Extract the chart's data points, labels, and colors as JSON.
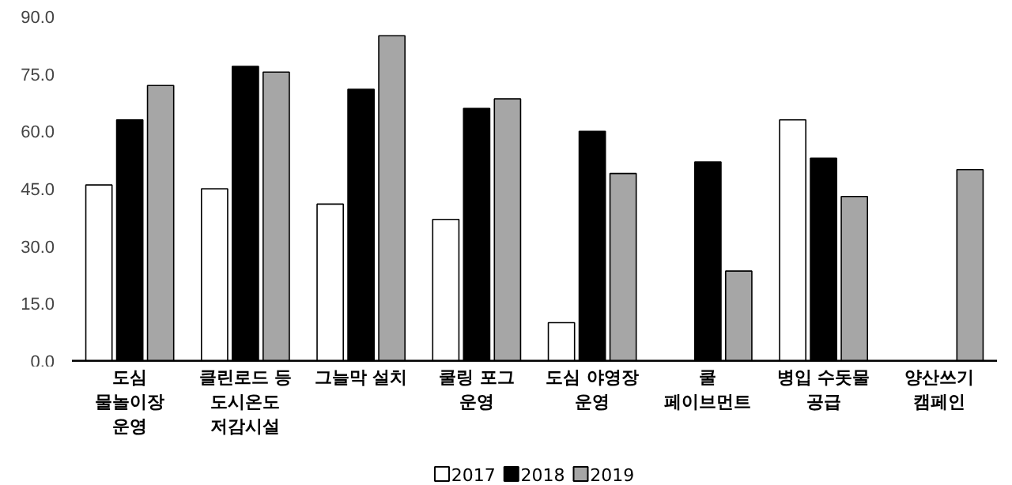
{
  "chart_data": {
    "type": "bar",
    "categories": [
      "도심\n물놀이장\n운영",
      "클린로드 등\n도시온도\n저감시설",
      "그늘막 설치",
      "쿨링 포그\n운영",
      "도심 야영장\n운영",
      "쿨\n페이브먼트",
      "병입 수돗물\n공급",
      "양산쓰기\n캠페인"
    ],
    "series": [
      {
        "name": "2017",
        "color": "#ffffff",
        "values": [
          46,
          45,
          41,
          37,
          10,
          null,
          63,
          null
        ]
      },
      {
        "name": "2018",
        "color": "#000000",
        "values": [
          63,
          77,
          71,
          66,
          60,
          52,
          53,
          null
        ]
      },
      {
        "name": "2019",
        "color": "#a6a6a6",
        "values": [
          72,
          75.5,
          85,
          68.5,
          49,
          23.5,
          43,
          50
        ]
      }
    ],
    "ylim": [
      0,
      90
    ],
    "yticks": [
      {
        "value": 0,
        "label": "0.0"
      },
      {
        "value": 15,
        "label": "15.0"
      },
      {
        "value": 30,
        "label": "30.0"
      },
      {
        "value": 45,
        "label": "45.0"
      },
      {
        "value": 60,
        "label": "60.0"
      },
      {
        "value": 75,
        "label": "75.0"
      },
      {
        "value": 90,
        "label": "90.0"
      }
    ],
    "grid": false,
    "legend": "bottom"
  }
}
